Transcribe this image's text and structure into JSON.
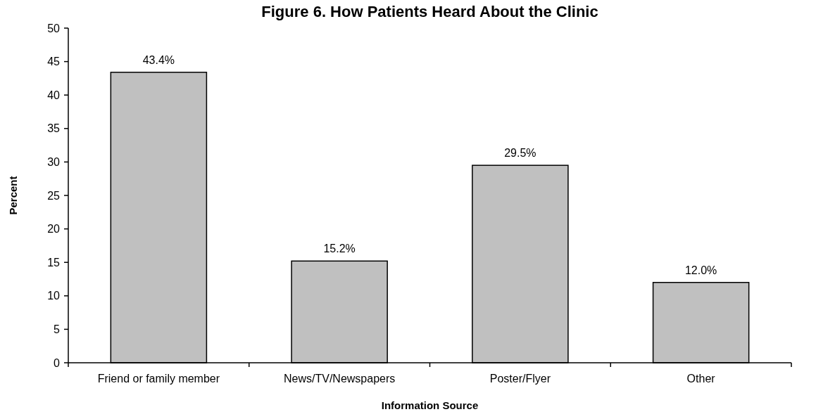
{
  "chart_data": {
    "type": "bar",
    "title": "Figure 6. How Patients Heard About the Clinic",
    "xlabel": "Information Source",
    "ylabel": "Percent",
    "categories": [
      "Friend or family member",
      "News/TV/Newspapers",
      "Poster/Flyer",
      "Other"
    ],
    "values": [
      43.4,
      15.2,
      29.5,
      12.0
    ],
    "value_labels": [
      "43.4%",
      "15.2%",
      "29.5%",
      "12.0%"
    ],
    "color": "#c0c0c0",
    "ylim": [
      0,
      50
    ],
    "yticks": [
      0,
      5,
      10,
      15,
      20,
      25,
      30,
      35,
      40,
      45,
      50
    ],
    "grid": false
  }
}
